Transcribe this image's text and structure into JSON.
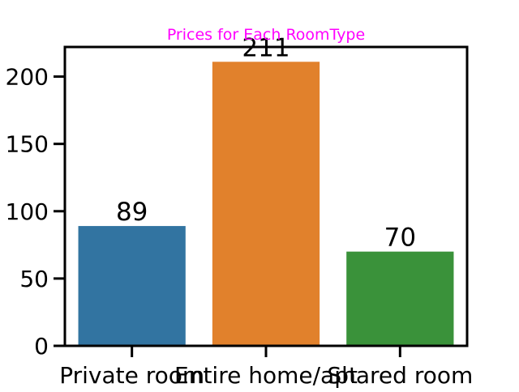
{
  "chart_data": {
    "type": "bar",
    "title": "Prices for Each RoomType",
    "title_color": "#ff00ff",
    "xlabel": "",
    "ylabel": "",
    "categories": [
      "Private room",
      "Entire home/apt",
      "Shared room"
    ],
    "values": [
      89,
      211,
      70
    ],
    "data_labels": [
      "89",
      "211",
      "70"
    ],
    "colors": [
      "#3274a1",
      "#e1812c",
      "#3a923a"
    ],
    "ylim": [
      0,
      222
    ],
    "yticks": [
      0,
      50,
      100,
      150,
      200
    ],
    "ytick_labels": [
      "0",
      "50",
      "100",
      "150",
      "200"
    ],
    "grid": false,
    "legend": false
  }
}
